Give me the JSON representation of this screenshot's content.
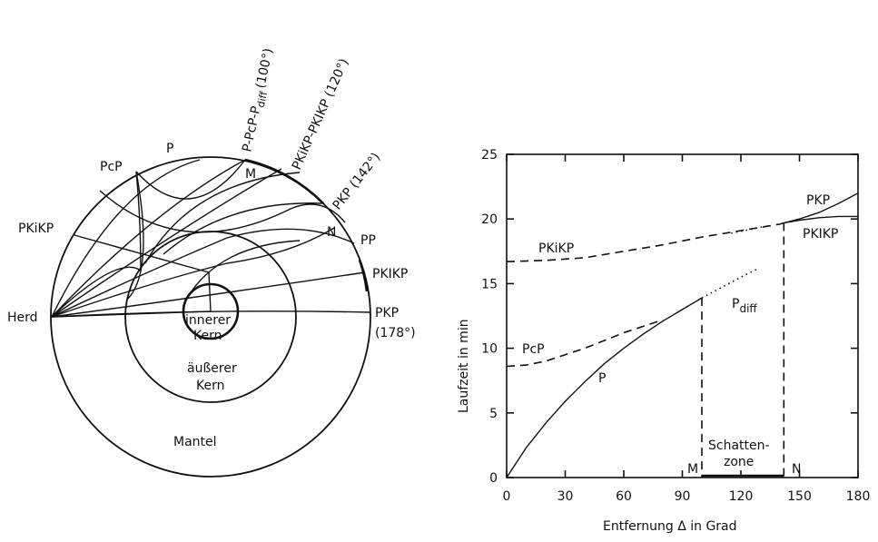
{
  "diagram": {
    "labels": {
      "herd": "Herd",
      "pkikp_left": "PKiKP",
      "pcp": "PcP",
      "p": "P",
      "p_pcp_pdiff": "P-PcP-P",
      "p_pcp_pdiff_sub": "diff",
      "p_pcp_pdiff_angle": "(100°)",
      "pkikp_pkikp": "PKiKP-PKIKP (120°)",
      "pkp142": "PKP (142°)",
      "m": "M",
      "n": "N",
      "pp": "PP",
      "pkikp_right": "PKIKP",
      "pkp178": "PKP",
      "pkp178_angle": "(178°)",
      "inner_core_1": "innerer",
      "inner_core_2": "Kern",
      "outer_core_1": "äußerer",
      "outer_core_2": "Kern",
      "mantle": "Mantel"
    }
  },
  "chart_data": {
    "type": "line",
    "xlabel": "Entfernung Δ in Grad",
    "ylabel": "Laufzeit in min",
    "xlim": [
      0,
      180
    ],
    "ylim": [
      0,
      25
    ],
    "xticks": [
      0,
      30,
      60,
      90,
      120,
      150,
      180
    ],
    "yticks": [
      0,
      5,
      10,
      15,
      20,
      25
    ],
    "grid": false,
    "series": [
      {
        "name": "P",
        "style": "solid",
        "x": [
          0,
          10,
          20,
          30,
          40,
          50,
          60,
          70,
          80,
          90,
          100
        ],
        "y": [
          0,
          2.3,
          4.2,
          5.9,
          7.4,
          8.8,
          10.0,
          11.1,
          12.1,
          13.0,
          13.9
        ]
      },
      {
        "name": "P_diff",
        "style": "dotted",
        "x": [
          100,
          110,
          120,
          128
        ],
        "y": [
          13.9,
          14.7,
          15.5,
          16.1
        ]
      },
      {
        "name": "PcP",
        "style": "dashed",
        "x": [
          0,
          10,
          20,
          30,
          40,
          50,
          60,
          70,
          80
        ],
        "y": [
          8.6,
          8.7,
          9.0,
          9.5,
          10.0,
          10.6,
          11.2,
          11.7,
          12.2
        ]
      },
      {
        "name": "PKiKP",
        "style": "dashed",
        "x": [
          0,
          20,
          40,
          60,
          80,
          100,
          120,
          140,
          142
        ],
        "y": [
          16.7,
          16.8,
          17.0,
          17.5,
          18.0,
          18.6,
          19.1,
          19.6,
          19.7
        ]
      },
      {
        "name": "PKiKP_dotted",
        "style": "dotted",
        "x": [
          115,
          125,
          135
        ],
        "y": [
          18.9,
          19.2,
          19.5
        ]
      },
      {
        "name": "PKP",
        "style": "solid",
        "x": [
          142,
          150,
          160,
          170,
          180
        ],
        "y": [
          19.7,
          20.0,
          20.5,
          21.2,
          22.0
        ]
      },
      {
        "name": "PKIKP",
        "style": "solid",
        "x": [
          142,
          150,
          160,
          170,
          180
        ],
        "y": [
          19.7,
          19.9,
          20.1,
          20.2,
          20.2
        ]
      }
    ],
    "markers": [
      {
        "label": "M",
        "x": 100
      },
      {
        "label": "N",
        "x": 142
      }
    ],
    "annotations": {
      "p": "P",
      "pdiff": "P",
      "pdiff_sub": "diff",
      "pcp": "PcP",
      "pkikp": "PKiKP",
      "pkp": "PKP",
      "pkikp_right": "PKIKP",
      "schatten_1": "Schatten-",
      "schatten_2": "zone",
      "m": "M",
      "n": "N"
    }
  }
}
